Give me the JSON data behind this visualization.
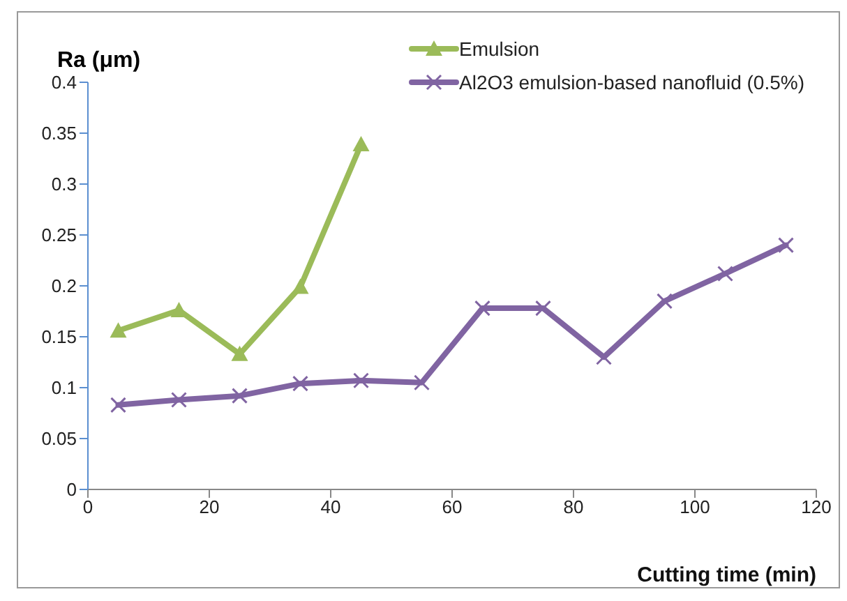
{
  "chart_data": {
    "type": "line",
    "ylabel": "Ra (μm)",
    "xlabel": "Cutting time (min)",
    "legend": "top",
    "grid": false,
    "xlim": [
      0,
      120
    ],
    "xticks": [
      0,
      20,
      40,
      60,
      80,
      100,
      120
    ],
    "ylim": [
      0,
      0.4
    ],
    "yticks": [
      0,
      0.05,
      0.1,
      0.15,
      0.2,
      0.25,
      0.3,
      0.35,
      0.4
    ],
    "series": [
      {
        "name": "Emulsion",
        "color": "#9bbb59",
        "marker": "triangle",
        "x": [
          5,
          15,
          25,
          35,
          45
        ],
        "values": [
          0.156,
          0.176,
          0.133,
          0.199,
          0.339
        ]
      },
      {
        "name": "Al2O3 emulsion-based nanofluid (0.5%)",
        "color": "#8064a2",
        "marker": "cross",
        "x": [
          5,
          15,
          25,
          35,
          45,
          55,
          65,
          75,
          85,
          95,
          105,
          115
        ],
        "values": [
          0.083,
          0.088,
          0.092,
          0.104,
          0.107,
          0.105,
          0.178,
          0.178,
          0.13,
          0.185,
          0.212,
          0.24
        ]
      }
    ]
  }
}
